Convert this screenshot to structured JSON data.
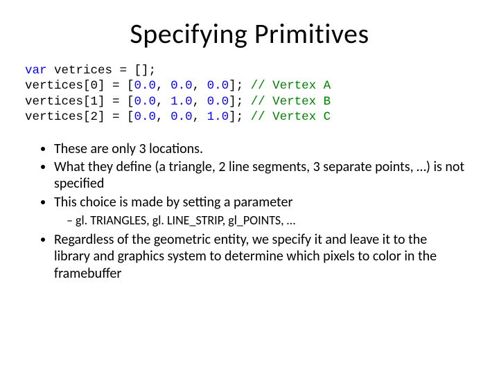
{
  "title": "Specifying Primitives",
  "code": {
    "kw_var": "var",
    "decl_rest": " vetrices = [];",
    "lines": [
      {
        "lhs": "vertices[0] = [",
        "n1": "0.0",
        "c1": ", ",
        "n2": "0.0",
        "c2": ", ",
        "n3": "0.0",
        "rhs": "]; ",
        "cm": "// Vertex A"
      },
      {
        "lhs": "vertices[1] = [",
        "n1": "0.0",
        "c1": ", ",
        "n2": "1.0",
        "c2": ", ",
        "n3": "0.0",
        "rhs": "]; ",
        "cm": "// Vertex B"
      },
      {
        "lhs": "vertices[2] = [",
        "n1": "0.0",
        "c1": ", ",
        "n2": "0.0",
        "c2": ", ",
        "n3": "1.0",
        "rhs": "]; ",
        "cm": "// Vertex C"
      }
    ]
  },
  "bullets": {
    "b1": "These are only 3 locations.",
    "b2": "What they define (a triangle, 2 line segments, 3 separate points, …) is not specified",
    "b3": "This choice is made by setting a parameter",
    "b3_sub": "gl. TRIANGLES, gl. LINE_STRIP, gl_POINTS, …",
    "b4": "Regardless of the geometric entity, we specify it and leave it to the library and graphics system to determine which pixels to color in the framebuffer"
  },
  "colors": {
    "keyword": "#0a00ff",
    "number": "#0a00ff",
    "comment": "#008000",
    "text": "#000000",
    "background": "#ffffff"
  }
}
